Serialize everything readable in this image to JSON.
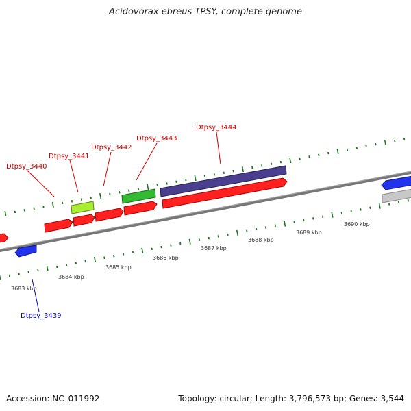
{
  "title": "Acidovorax ebreus TPSY, complete genome",
  "footer": {
    "accession": "Accession: NC_011992",
    "topology": "Topology: circular; Length: 3,796,573 bp; Genes: 3,544"
  },
  "scale_labels": [
    "3683 kbp",
    "3684 kbp",
    "3685 kbp",
    "3686 kbp",
    "3687 kbp",
    "3688 kbp",
    "3689 kbp",
    "3690 kbp"
  ],
  "gene_labels": {
    "upper": [
      "Dtpsy_3440",
      "Dtpsy_3441",
      "Dtpsy_3442",
      "Dtpsy_3443",
      "Dtpsy_3444"
    ],
    "lower": [
      "Dtpsy_3439"
    ]
  },
  "colors": {
    "red_gene": "#ff2020",
    "blue_gene": "#2233ee",
    "purple_gene": "#4a3f8f",
    "green_gene": "#33bb33",
    "lime_gene": "#aaee33",
    "gray_gene": "#c8c8c8",
    "label_red": "#cc0000",
    "label_blue": "#0000cc",
    "tick_green": "#1a7a1a",
    "backbone": "#888888"
  }
}
